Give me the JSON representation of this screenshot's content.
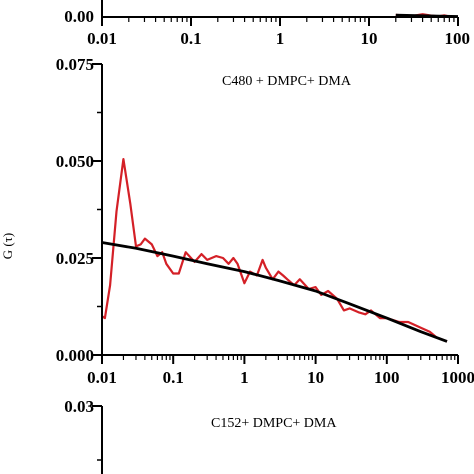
{
  "chart_data": [
    {
      "type": "line",
      "panel": "top (cropped)",
      "xscale": "log",
      "xlim": [
        0.01,
        100
      ],
      "x_tick_labels": [
        "0.01",
        "0.1",
        "1",
        "10",
        "100"
      ],
      "y_tick_labels": [
        "0.00"
      ],
      "annotation": "",
      "series": [
        {
          "color": "#d42027",
          "x": [
            20,
            30,
            40,
            50,
            60,
            70,
            80,
            100
          ],
          "y": [
            0.0009,
            0.0004,
            0.0012,
            0.0006,
            0.0003,
            0.0007,
            0.0002,
            0.0001
          ]
        },
        {
          "color": "#000000",
          "x": [
            20,
            40,
            70,
            100
          ],
          "y": [
            0.0008,
            0.0005,
            0.0003,
            0.0002
          ]
        }
      ]
    },
    {
      "type": "line",
      "panel": "middle",
      "annotation": "C480 + DMPC+ DMA",
      "ylabel": "G (τ)",
      "xscale": "log",
      "xlim": [
        0.01,
        1000
      ],
      "ylim": [
        0.0,
        0.075
      ],
      "x_tick_labels": [
        "0.01",
        "0.1",
        "1",
        "10",
        "100",
        "1000"
      ],
      "y_tick_labels": [
        "0.000",
        "0.025",
        "0.050",
        "0.075"
      ],
      "series": [
        {
          "color": "#d42027",
          "x": [
            0.01,
            0.011,
            0.013,
            0.016,
            0.02,
            0.025,
            0.03,
            0.035,
            0.04,
            0.05,
            0.06,
            0.07,
            0.08,
            0.1,
            0.12,
            0.15,
            0.2,
            0.25,
            0.3,
            0.4,
            0.5,
            0.6,
            0.7,
            0.8,
            1.0,
            1.2,
            1.5,
            1.8,
            2.0,
            2.5,
            3.0,
            3.5,
            4.0,
            5.0,
            6.0,
            8.0,
            10,
            12,
            15,
            20,
            25,
            30,
            40,
            50,
            60,
            80,
            100,
            150,
            200,
            300,
            400,
            500,
            600,
            700
          ],
          "y": [
            0.01,
            0.0095,
            0.018,
            0.037,
            0.0505,
            0.039,
            0.028,
            0.0285,
            0.03,
            0.0285,
            0.0255,
            0.0265,
            0.0235,
            0.021,
            0.021,
            0.0265,
            0.024,
            0.026,
            0.0245,
            0.0255,
            0.025,
            0.0235,
            0.025,
            0.0235,
            0.0185,
            0.0215,
            0.0205,
            0.0245,
            0.0225,
            0.0195,
            0.0215,
            0.0205,
            0.0195,
            0.018,
            0.0195,
            0.017,
            0.0175,
            0.0155,
            0.0165,
            0.0145,
            0.0115,
            0.012,
            0.011,
            0.0105,
            0.0115,
            0.0095,
            0.0095,
            0.0085,
            0.0085,
            0.007,
            0.006,
            0.0045,
            0.004,
            0.0035
          ]
        },
        {
          "color": "#000000",
          "x": [
            0.01,
            0.03,
            0.1,
            0.3,
            1,
            3,
            10,
            30,
            100,
            300,
            700
          ],
          "y": [
            0.029,
            0.0275,
            0.0255,
            0.0235,
            0.0215,
            0.0192,
            0.0165,
            0.0132,
            0.0095,
            0.006,
            0.0035
          ]
        }
      ]
    },
    {
      "type": "line",
      "panel": "bottom (cropped)",
      "annotation": "C152+ DMPC+ DMA",
      "y_tick_labels": [
        "0.03"
      ],
      "series": []
    }
  ]
}
